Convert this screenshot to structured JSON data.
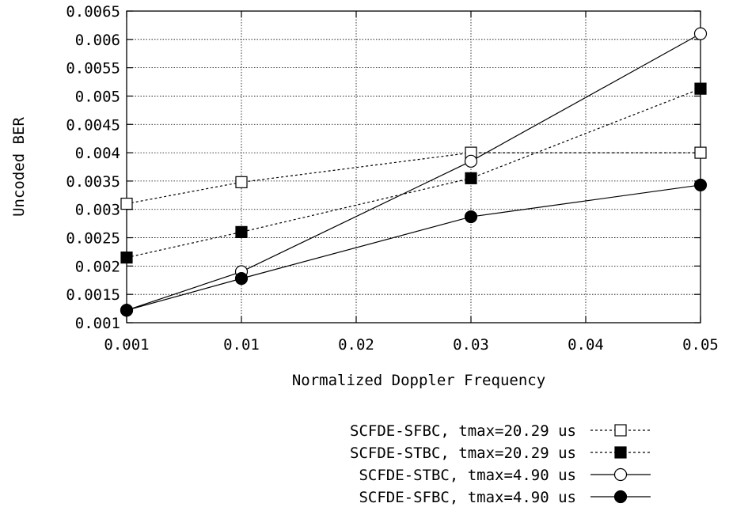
{
  "chart_data": {
    "type": "line",
    "xlabel": "Normalized Doppler Frequency",
    "ylabel": "Uncoded BER",
    "x_ticks": [
      "0.001",
      "0.01",
      "0.02",
      "0.03",
      "0.04",
      "0.05"
    ],
    "x_tick_values": [
      0.001,
      0.01,
      0.02,
      0.03,
      0.04,
      0.05
    ],
    "y_ticks": [
      "0.001",
      "0.0015",
      "0.002",
      "0.0025",
      "0.003",
      "0.0035",
      "0.004",
      "0.0045",
      "0.005",
      "0.0055",
      "0.006",
      "0.0065"
    ],
    "ylim": [
      0.001,
      0.0065
    ],
    "grid": true,
    "legend_position": "below plot, right-aligned",
    "x": [
      0.001,
      0.01,
      0.03,
      0.05
    ],
    "series": [
      {
        "name": "SCFDE-SFBC, tmax=20.29 us",
        "marker": "open-square",
        "line": "dotted",
        "values": [
          0.0031,
          0.00348,
          0.004,
          0.004
        ]
      },
      {
        "name": "SCFDE-STBC, tmax=20.29 us",
        "marker": "filled-square",
        "line": "dotted",
        "values": [
          0.00215,
          0.0026,
          0.00355,
          0.00513
        ]
      },
      {
        "name": "SCFDE-STBC, tmax=4.90 us",
        "marker": "open-circle",
        "line": "solid",
        "values": [
          0.00122,
          0.0019,
          0.00385,
          0.0061
        ]
      },
      {
        "name": "SCFDE-SFBC, tmax=4.90 us",
        "marker": "filled-circle",
        "line": "solid",
        "values": [
          0.00122,
          0.00178,
          0.00287,
          0.00343
        ]
      }
    ]
  }
}
